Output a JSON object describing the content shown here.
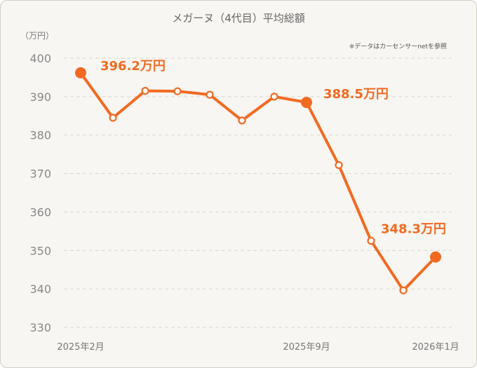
{
  "chart_data": {
    "type": "line",
    "title": "メガーヌ（4代目）平均総額",
    "unit_label": "（万円）",
    "source_note": "※データはカーセンサーnetを参照",
    "ylim": [
      330,
      400
    ],
    "y_ticks": [
      330,
      340,
      350,
      360,
      370,
      380,
      390,
      400
    ],
    "x_tick_labels": [
      {
        "index": 0,
        "label": "2025年2月"
      },
      {
        "index": 7,
        "label": "2025年9月"
      },
      {
        "index": 11,
        "label": "2026年1月"
      }
    ],
    "grid": true,
    "series": [
      {
        "values": [
          396.2,
          384.5,
          391.5,
          391.4,
          390.5,
          383.8,
          390.0,
          388.5,
          372.2,
          352.5,
          339.6,
          348.3
        ]
      }
    ],
    "highlighted_points": [
      {
        "index": 0,
        "label": "396.2万円"
      },
      {
        "index": 7,
        "label": "388.5万円"
      },
      {
        "index": 11,
        "label": "348.3万円"
      }
    ],
    "colors": {
      "line": "#f26a22",
      "background": "#f8f6f2"
    }
  }
}
